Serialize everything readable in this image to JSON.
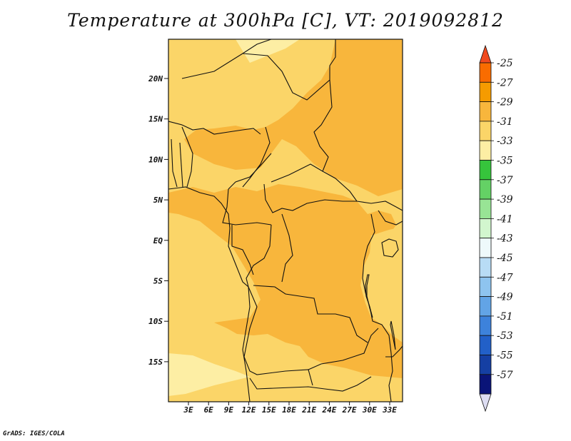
{
  "title": "Temperature at 300hPa [C], VT: 2019092812",
  "footer": "GrADS: IGES/COLA",
  "chart_data": {
    "type": "heatmap",
    "variable": "Temperature at 300hPa",
    "units": "C",
    "valid_time": "2019092812",
    "x_ticks": [
      "3E",
      "6E",
      "9E",
      "12E",
      "15E",
      "18E",
      "21E",
      "24E",
      "27E",
      "30E",
      "33E"
    ],
    "y_ticks": [
      "20N",
      "15N",
      "10N",
      "5N",
      "EQ",
      "5S",
      "10S",
      "15S"
    ],
    "colorbar": {
      "levels": [
        -25,
        -27,
        -29,
        -31,
        -33,
        -35,
        -37,
        -39,
        -41,
        -43,
        -45,
        -47,
        -49,
        -51,
        -53,
        -55,
        -57
      ],
      "colors": [
        "#f04a1e",
        "#f96c00",
        "#f59b00",
        "#f8b63c",
        "#fbd568",
        "#fdeea4",
        "#36c43c",
        "#64d165",
        "#98e495",
        "#d2f6ce",
        "#eef9fb",
        "#b8dcf5",
        "#8ec4ef",
        "#62a4e6",
        "#3d82db",
        "#2260c8",
        "#153fa3",
        "#0a1478",
        "#ddddf2"
      ]
    }
  }
}
